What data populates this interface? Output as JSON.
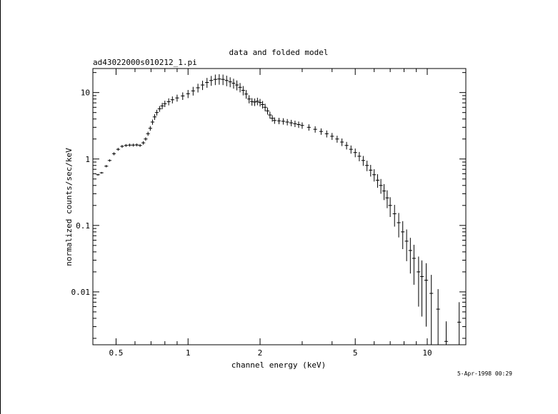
{
  "chart_data": {
    "type": "scatter",
    "title": "data and folded model",
    "subtitle": "ad43022000s010212_1.pi",
    "xlabel": "channel energy (keV)",
    "ylabel": "normalized counts/sec/keV",
    "timestamp": "5-Apr-1998 00:29",
    "x_scale": "log",
    "y_scale": "log",
    "xlim": [
      0.4,
      14.5
    ],
    "ylim": [
      0.0016,
      23
    ],
    "x_ticks": [
      {
        "value": 0.5,
        "label": "0.5"
      },
      {
        "value": 1,
        "label": "1"
      },
      {
        "value": 2,
        "label": "2"
      },
      {
        "value": 5,
        "label": "5"
      },
      {
        "value": 10,
        "label": "10"
      }
    ],
    "y_ticks": [
      {
        "value": 0.01,
        "label": "0.01"
      },
      {
        "value": 0.1,
        "label": "0.1"
      },
      {
        "value": 1,
        "label": "1"
      },
      {
        "value": 10,
        "label": "10"
      }
    ],
    "grid": false,
    "legend": "none",
    "series": [
      {
        "points": [
          [
            0.42,
            0.58,
            0.03
          ],
          [
            0.435,
            0.62,
            0.03
          ],
          [
            0.455,
            0.78,
            0.04
          ],
          [
            0.47,
            0.95,
            0.04
          ],
          [
            0.49,
            1.2,
            0.05
          ],
          [
            0.51,
            1.4,
            0.05
          ],
          [
            0.53,
            1.55,
            0.05
          ],
          [
            0.55,
            1.6,
            0.05
          ],
          [
            0.57,
            1.62,
            0.05
          ],
          [
            0.59,
            1.62,
            0.05
          ],
          [
            0.61,
            1.63,
            0.05
          ],
          [
            0.63,
            1.6,
            0.05
          ],
          [
            0.65,
            1.75,
            0.06
          ],
          [
            0.665,
            2.0,
            0.06
          ],
          [
            0.68,
            2.4,
            0.07
          ],
          [
            0.695,
            2.9,
            0.08
          ],
          [
            0.71,
            3.6,
            0.09
          ],
          [
            0.725,
            4.3,
            0.1
          ],
          [
            0.74,
            5.0,
            0.1
          ],
          [
            0.76,
            5.7,
            0.1
          ],
          [
            0.78,
            6.3,
            0.11
          ],
          [
            0.8,
            6.8,
            0.11
          ],
          [
            0.83,
            7.3,
            0.12
          ],
          [
            0.86,
            7.8,
            0.12
          ],
          [
            0.9,
            8.3,
            0.12
          ],
          [
            0.95,
            8.9,
            0.13
          ],
          [
            1.0,
            9.6,
            0.14
          ],
          [
            1.05,
            10.6,
            0.15
          ],
          [
            1.1,
            11.8,
            0.15
          ],
          [
            1.15,
            13.0,
            0.16
          ],
          [
            1.2,
            14.2,
            0.17
          ],
          [
            1.25,
            15.2,
            0.17
          ],
          [
            1.3,
            15.8,
            0.18
          ],
          [
            1.35,
            16.0,
            0.18
          ],
          [
            1.4,
            15.8,
            0.18
          ],
          [
            1.45,
            15.2,
            0.18
          ],
          [
            1.5,
            14.5,
            0.17
          ],
          [
            1.55,
            13.8,
            0.17
          ],
          [
            1.6,
            13.0,
            0.17
          ],
          [
            1.65,
            12.0,
            0.16
          ],
          [
            1.7,
            10.8,
            0.16
          ],
          [
            1.75,
            9.5,
            0.15
          ],
          [
            1.8,
            8.0,
            0.14
          ],
          [
            1.85,
            7.3,
            0.13
          ],
          [
            1.9,
            7.2,
            0.13
          ],
          [
            1.95,
            7.4,
            0.13
          ],
          [
            2.0,
            7.1,
            0.13
          ],
          [
            2.05,
            6.6,
            0.13
          ],
          [
            2.1,
            6.0,
            0.13
          ],
          [
            2.15,
            5.3,
            0.12
          ],
          [
            2.2,
            4.6,
            0.12
          ],
          [
            2.25,
            4.1,
            0.11
          ],
          [
            2.3,
            3.8,
            0.11
          ],
          [
            2.4,
            3.75,
            0.11
          ],
          [
            2.5,
            3.7,
            0.11
          ],
          [
            2.6,
            3.6,
            0.11
          ],
          [
            2.7,
            3.5,
            0.11
          ],
          [
            2.8,
            3.4,
            0.11
          ],
          [
            2.9,
            3.3,
            0.11
          ],
          [
            3.0,
            3.2,
            0.11
          ],
          [
            3.2,
            3.0,
            0.11
          ],
          [
            3.4,
            2.8,
            0.11
          ],
          [
            3.6,
            2.6,
            0.11
          ],
          [
            3.8,
            2.4,
            0.12
          ],
          [
            4.0,
            2.2,
            0.12
          ],
          [
            4.2,
            2.0,
            0.12
          ],
          [
            4.4,
            1.8,
            0.13
          ],
          [
            4.6,
            1.6,
            0.13
          ],
          [
            4.8,
            1.4,
            0.14
          ],
          [
            5.0,
            1.25,
            0.15
          ],
          [
            5.2,
            1.1,
            0.16
          ],
          [
            5.4,
            0.95,
            0.17
          ],
          [
            5.6,
            0.8,
            0.18
          ],
          [
            5.8,
            0.68,
            0.2
          ],
          [
            6.0,
            0.58,
            0.21
          ],
          [
            6.2,
            0.48,
            0.23
          ],
          [
            6.4,
            0.4,
            0.25
          ],
          [
            6.6,
            0.33,
            0.27
          ],
          [
            6.8,
            0.26,
            0.3
          ],
          [
            7.0,
            0.2,
            0.33
          ],
          [
            7.3,
            0.15,
            0.36
          ],
          [
            7.6,
            0.11,
            0.4
          ],
          [
            7.9,
            0.08,
            0.45
          ],
          [
            8.2,
            0.058,
            0.5
          ],
          [
            8.5,
            0.042,
            0.55
          ],
          [
            8.8,
            0.032,
            0.6
          ],
          [
            9.2,
            0.02,
            0.7
          ],
          [
            9.5,
            0.017,
            0.75
          ],
          [
            9.9,
            0.015,
            0.8
          ],
          [
            10.4,
            0.0095,
            0.9
          ],
          [
            11.1,
            0.0055,
            1.0
          ],
          [
            12.0,
            0.0018,
            1.0
          ],
          [
            13.6,
            0.0035,
            1.0
          ]
        ]
      }
    ]
  }
}
